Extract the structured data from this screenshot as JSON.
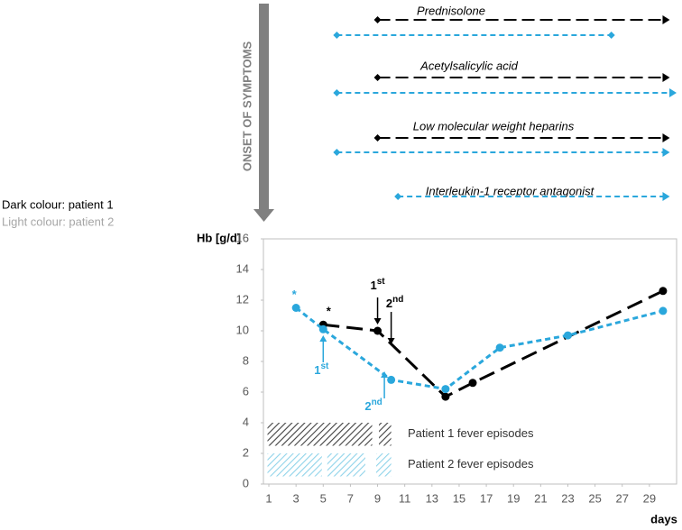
{
  "chart_data": {
    "type": "line",
    "ylabel": "Hb [g/d]",
    "xlabel": "days",
    "xlim": [
      0.6,
      31
    ],
    "ylim": [
      0,
      16
    ],
    "xticks": [
      1,
      3,
      5,
      7,
      9,
      11,
      13,
      15,
      17,
      19,
      21,
      23,
      25,
      27,
      29
    ],
    "yticks": [
      0,
      2,
      4,
      6,
      8,
      10,
      12,
      14,
      16
    ],
    "series": [
      {
        "color": "#000000",
        "x": [
          5,
          9,
          14,
          16,
          30
        ],
        "values": [
          10.4,
          10,
          5.7,
          6.6,
          12.6
        ]
      },
      {
        "color": "#2aa7dc",
        "x": [
          3,
          5,
          10,
          14,
          18,
          23,
          30
        ],
        "values": [
          11.5,
          10.1,
          6.8,
          6.2,
          8.9,
          9.7,
          11.3
        ]
      }
    ],
    "legend_notes": [
      {
        "text": "Dark colour: patient 1",
        "color": "#000000"
      },
      {
        "text": "Light colour: patient 2",
        "color": "#a6a6a6"
      }
    ],
    "onset": "ONSET OF SYMPTOMS",
    "asterisks": [
      {
        "text": "*",
        "color": "#2aa7dc"
      },
      {
        "text": "*",
        "color": "#000000"
      }
    ],
    "annotations": [
      {
        "number": "1",
        "suffix": "st",
        "color": "#000000"
      },
      {
        "number": "2",
        "suffix": "nd",
        "color": "#000000"
      },
      {
        "number": "1",
        "suffix": "st",
        "color": "#2aa7dc"
      },
      {
        "number": "2",
        "suffix": "nd",
        "color": "#2aa7dc"
      }
    ],
    "fever": [
      {
        "label": "Patient 1 fever episodes",
        "color": "#404040",
        "band": [
          2.5,
          4
        ],
        "ranges": [
          [
            0.9,
            8.6
          ],
          [
            9.1,
            10
          ]
        ]
      },
      {
        "label": "Patient 2 fever episodes",
        "color": "#8fd3ea",
        "band": [
          0.5,
          2
        ],
        "ranges": [
          [
            0.9,
            4.9
          ],
          [
            5.3,
            8.1
          ],
          [
            8.9,
            10
          ]
        ]
      }
    ],
    "treatments": [
      {
        "label": "Prednisolone",
        "lines": [
          {
            "color": "#000000",
            "start": 9,
            "end": 30.5,
            "arrow": true
          },
          {
            "color": "#2aa7dc",
            "start": 6,
            "end": 26.2,
            "arrow": false
          }
        ]
      },
      {
        "label": "Acetylsalicylic acid",
        "lines": [
          {
            "color": "#000000",
            "start": 9,
            "end": 30.5,
            "arrow": true
          },
          {
            "color": "#2aa7dc",
            "start": 6,
            "end": 31,
            "arrow": true
          }
        ]
      },
      {
        "label": "Low molecular weight heparins",
        "lines": [
          {
            "color": "#000000",
            "start": 9,
            "end": 30.5,
            "arrow": true
          },
          {
            "color": "#2aa7dc",
            "start": 6,
            "end": 30.5,
            "arrow": true
          }
        ]
      },
      {
        "label": "Interleukin-1 receptor antagonist",
        "lines": [
          {
            "color": "#2aa7dc",
            "start": 10.5,
            "end": 30.5,
            "arrow": true
          }
        ]
      }
    ]
  }
}
